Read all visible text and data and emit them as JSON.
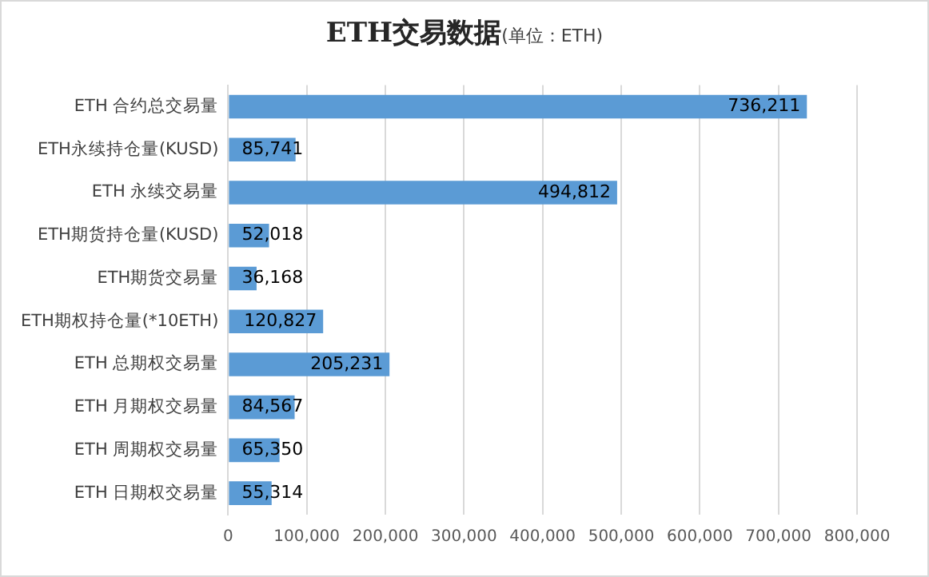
{
  "chart_data": {
    "type": "bar",
    "orientation": "horizontal",
    "title": "ETH交易数据",
    "subtitle": "(单位：ETH)",
    "categories": [
      "ETH 合约总交易量",
      "ETH永续持仓量(KUSD)",
      "ETH 永续交易量",
      "ETH期货持仓量(KUSD)",
      "ETH期货交易量",
      "ETH期权持仓量(*10ETH)",
      "ETH 总期权交易量",
      "ETH 月期权交易量",
      "ETH 周期权交易量",
      "ETH 日期权交易量"
    ],
    "values": [
      736211,
      85741,
      494812,
      52018,
      36168,
      120827,
      205231,
      84567,
      65350,
      55314
    ],
    "value_labels": [
      "736,211",
      "85,741",
      "494,812",
      "52,018",
      "36,168",
      "120,827",
      "205,231",
      "84,567",
      "65,350",
      "55,314"
    ],
    "color": "#5b9bd5",
    "xlim": [
      0,
      800000
    ],
    "xticks": [
      {
        "value": 0,
        "label": "0"
      },
      {
        "value": 100000,
        "label": "100,000"
      },
      {
        "value": 200000,
        "label": "200,000"
      },
      {
        "value": 300000,
        "label": "300,000"
      },
      {
        "value": 400000,
        "label": "400,000"
      },
      {
        "value": 500000,
        "label": "500,000"
      },
      {
        "value": 600000,
        "label": "600,000"
      },
      {
        "value": 700000,
        "label": "700,000"
      },
      {
        "value": 800000,
        "label": "800,000"
      }
    ],
    "grid": "x",
    "legend": false
  }
}
